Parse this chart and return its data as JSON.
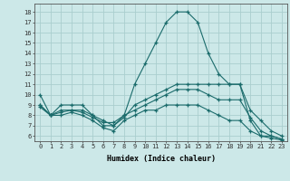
{
  "xlabel": "Humidex (Indice chaleur)",
  "bg_color": "#cce8e8",
  "grid_color": "#aacece",
  "line_color": "#1a6b6b",
  "xlim": [
    -0.5,
    23.5
  ],
  "ylim": [
    5.5,
    18.8
  ],
  "lines": [
    {
      "x": [
        0,
        1,
        2,
        3,
        4,
        5,
        6,
        7,
        8,
        9,
        10,
        11,
        12,
        13,
        14,
        15,
        16,
        17,
        18,
        19,
        20,
        21,
        22,
        23
      ],
      "y": [
        10,
        8,
        9,
        9,
        9,
        8,
        7,
        7,
        8,
        11,
        13,
        15,
        17,
        18,
        18,
        17,
        14,
        12,
        11,
        11,
        7.5,
        6,
        6,
        5.7
      ]
    },
    {
      "x": [
        0,
        1,
        2,
        3,
        4,
        5,
        6,
        7,
        8,
        9,
        10,
        11,
        12,
        13,
        14,
        15,
        16,
        17,
        18,
        19,
        20,
        21,
        22,
        23
      ],
      "y": [
        9,
        8,
        8.5,
        8.5,
        8.5,
        8,
        7.5,
        7,
        7.8,
        9,
        9.5,
        10,
        10.5,
        11,
        11,
        11,
        11,
        11,
        11,
        11,
        8.5,
        7.5,
        6.5,
        6
      ]
    },
    {
      "x": [
        0,
        1,
        2,
        3,
        4,
        5,
        6,
        7,
        8,
        9,
        10,
        11,
        12,
        13,
        14,
        15,
        16,
        17,
        18,
        19,
        20,
        21,
        22,
        23
      ],
      "y": [
        9,
        8,
        8.3,
        8.5,
        8.3,
        7.8,
        7.3,
        7.3,
        8,
        8.5,
        9,
        9.5,
        10,
        10.5,
        10.5,
        10.5,
        10,
        9.5,
        9.5,
        9.5,
        7.8,
        6.5,
        6,
        5.7
      ]
    },
    {
      "x": [
        0,
        1,
        2,
        3,
        4,
        5,
        6,
        7,
        8,
        9,
        10,
        11,
        12,
        13,
        14,
        15,
        16,
        17,
        18,
        19,
        20,
        21,
        22,
        23
      ],
      "y": [
        8.8,
        8,
        8,
        8.3,
        8,
        7.5,
        6.8,
        6.5,
        7.5,
        8,
        8.5,
        8.5,
        9,
        9,
        9,
        9,
        8.5,
        8,
        7.5,
        7.5,
        6.5,
        6,
        5.8,
        5.6
      ]
    }
  ]
}
